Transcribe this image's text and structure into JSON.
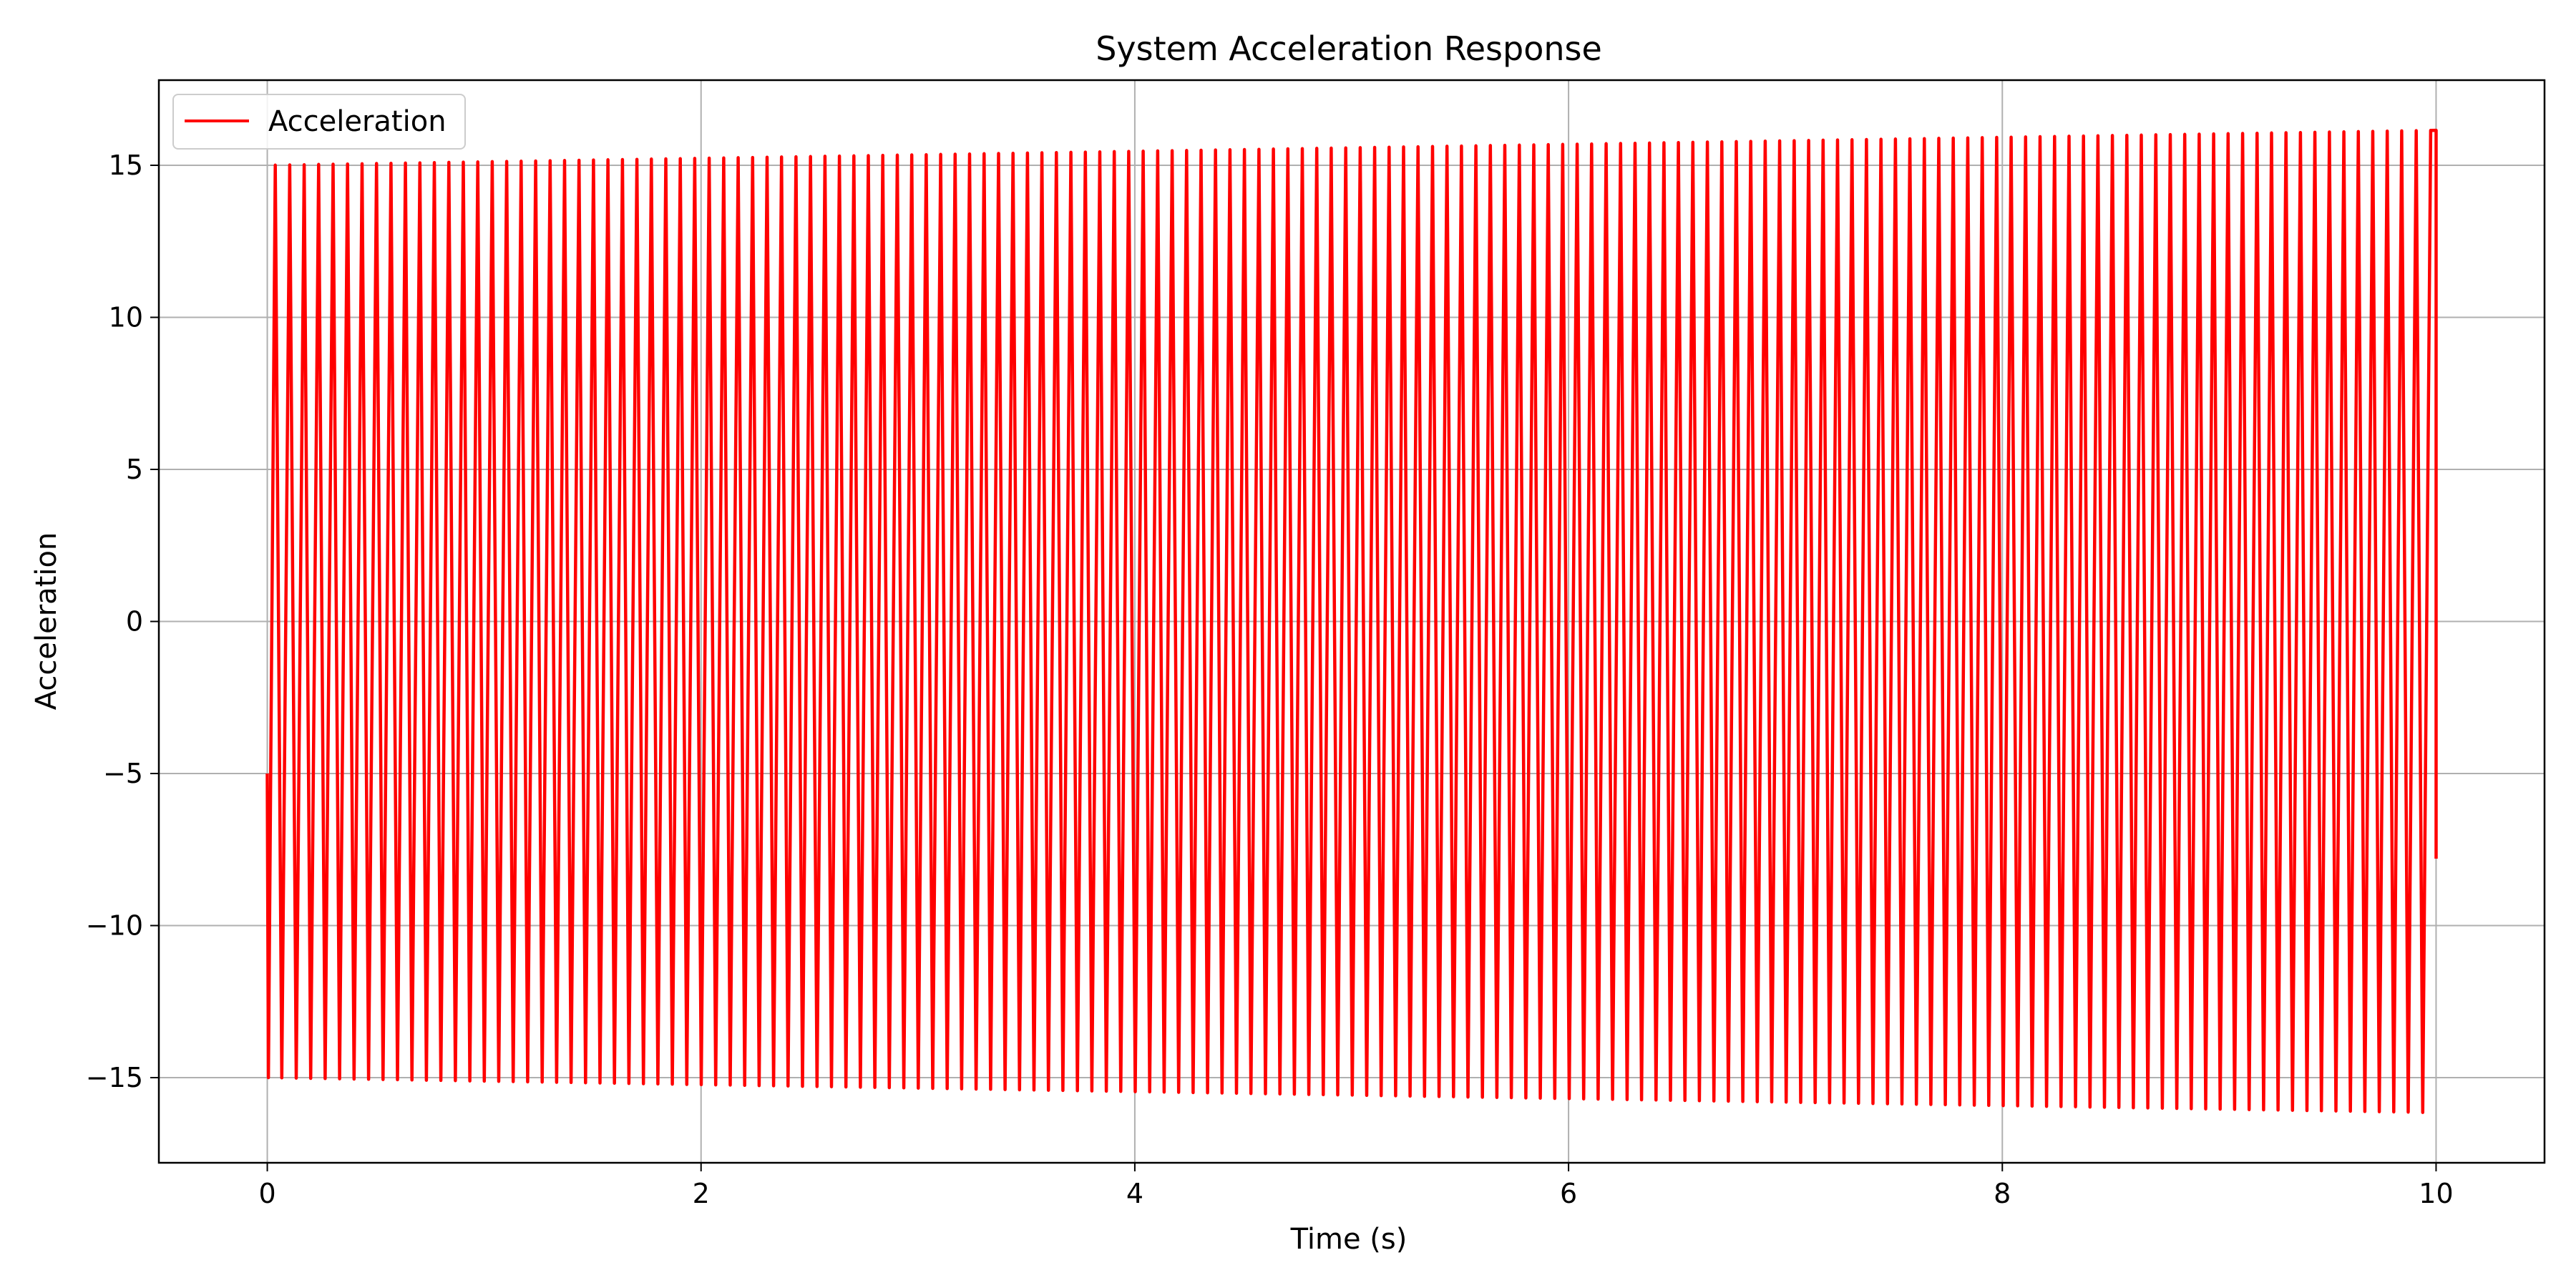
{
  "chart_data": {
    "type": "line",
    "title": "System Acceleration Response",
    "xlabel": "Time (s)",
    "ylabel": "Acceleration",
    "xlim": [
      -0.5,
      10.5
    ],
    "ylim": [
      -17.8,
      17.8
    ],
    "xticks": [
      0,
      2,
      4,
      6,
      8,
      10
    ],
    "xtick_labels": [
      "0",
      "2",
      "4",
      "6",
      "8",
      "10"
    ],
    "yticks": [
      -15,
      -10,
      -5,
      0,
      5,
      10,
      15
    ],
    "ytick_labels": [
      "−15",
      "−10",
      "−5",
      "0",
      "5",
      "10",
      "15"
    ],
    "grid": true,
    "legend_position": "top-left",
    "series": [
      {
        "name": "Acceleration",
        "color": "#ff0000",
        "waveform": "sawtooth-like oscillation with slowly growing amplitude",
        "x_start": 0,
        "x_end": 10,
        "y_start": -5,
        "y_end": -7.8,
        "period": 0.0667,
        "cycles": 150,
        "amplitude_start": 15.0,
        "amplitude_end": 16.15
      }
    ]
  }
}
